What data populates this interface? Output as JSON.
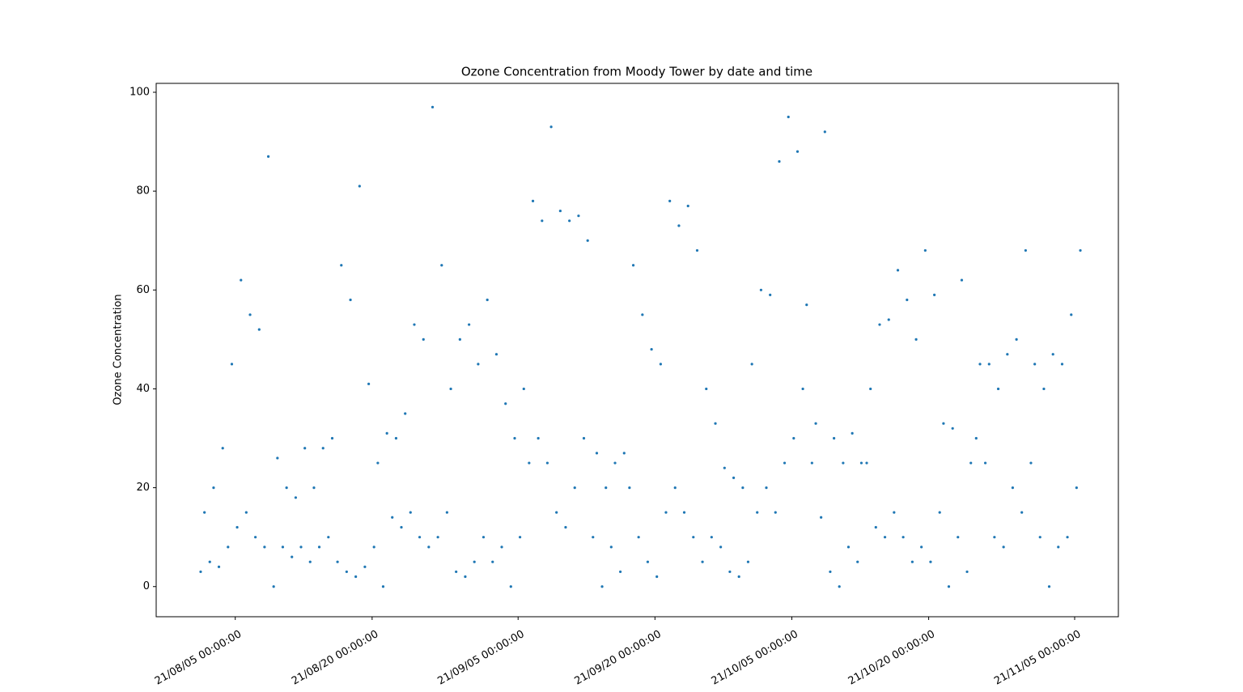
{
  "chart_data": {
    "type": "scatter",
    "title": "Ozone Concentration from Moody Tower by date and time",
    "y_label": "Ozone Concentration",
    "color": "#1f77b4",
    "xlim": [
      "21/07/27 08:00:00",
      "21/11/09 19:00:00"
    ],
    "ylim": [
      -6.1,
      101.8
    ],
    "xticks": [
      "21/08/05 00:00:00",
      "21/08/20 00:00:00",
      "21/09/05 00:00:00",
      "21/09/20 00:00:00",
      "21/10/05 00:00:00",
      "21/10/20 00:00:00",
      "21/11/05 00:00:00"
    ],
    "yticks": [
      0,
      20,
      40,
      60,
      80,
      100
    ],
    "x": [
      "21/08/01 05:00:00",
      "21/08/01 15:00:00",
      "21/08/02 05:00:00",
      "21/08/02 15:00:00",
      "21/08/03 05:00:00",
      "21/08/03 15:00:00",
      "21/08/04 05:00:00",
      "21/08/04 15:00:00",
      "21/08/05 05:00:00",
      "21/08/05 15:00:00",
      "21/08/06 05:00:00",
      "21/08/06 15:00:00",
      "21/08/07 05:00:00",
      "21/08/07 15:00:00",
      "21/08/08 05:00:00",
      "21/08/08 15:00:00",
      "21/08/09 05:00:00",
      "21/08/09 15:00:00",
      "21/08/10 05:00:00",
      "21/08/10 15:00:00",
      "21/08/11 05:00:00",
      "21/08/11 15:00:00",
      "21/08/12 05:00:00",
      "21/08/12 15:00:00",
      "21/08/13 05:00:00",
      "21/08/13 15:00:00",
      "21/08/14 05:00:00",
      "21/08/14 15:00:00",
      "21/08/15 05:00:00",
      "21/08/15 15:00:00",
      "21/08/16 05:00:00",
      "21/08/16 15:00:00",
      "21/08/17 05:00:00",
      "21/08/17 15:00:00",
      "21/08/18 05:00:00",
      "21/08/18 15:00:00",
      "21/08/19 05:00:00",
      "21/08/19 15:00:00",
      "21/08/20 05:00:00",
      "21/08/20 15:00:00",
      "21/08/21 05:00:00",
      "21/08/21 15:00:00",
      "21/08/22 05:00:00",
      "21/08/22 15:00:00",
      "21/08/23 05:00:00",
      "21/08/23 15:00:00",
      "21/08/24 05:00:00",
      "21/08/24 15:00:00",
      "21/08/25 05:00:00",
      "21/08/25 15:00:00",
      "21/08/26 05:00:00",
      "21/08/26 15:00:00",
      "21/08/27 05:00:00",
      "21/08/27 15:00:00",
      "21/08/28 05:00:00",
      "21/08/28 15:00:00",
      "21/08/29 05:00:00",
      "21/08/29 15:00:00",
      "21/08/30 05:00:00",
      "21/08/30 15:00:00",
      "21/08/31 05:00:00",
      "21/08/31 15:00:00",
      "21/09/01 05:00:00",
      "21/09/01 15:00:00",
      "21/09/02 05:00:00",
      "21/09/02 15:00:00",
      "21/09/03 05:00:00",
      "21/09/03 15:00:00",
      "21/09/04 05:00:00",
      "21/09/04 15:00:00",
      "21/09/05 05:00:00",
      "21/09/05 15:00:00",
      "21/09/06 05:00:00",
      "21/09/06 15:00:00",
      "21/09/07 05:00:00",
      "21/09/07 15:00:00",
      "21/09/08 05:00:00",
      "21/09/08 15:00:00",
      "21/09/09 05:00:00",
      "21/09/09 15:00:00",
      "21/09/10 05:00:00",
      "21/09/10 15:00:00",
      "21/09/11 05:00:00",
      "21/09/11 15:00:00",
      "21/09/12 05:00:00",
      "21/09/12 15:00:00",
      "21/09/13 05:00:00",
      "21/09/13 15:00:00",
      "21/09/14 05:00:00",
      "21/09/14 15:00:00",
      "21/09/15 05:00:00",
      "21/09/15 15:00:00",
      "21/09/16 05:00:00",
      "21/09/16 15:00:00",
      "21/09/17 05:00:00",
      "21/09/17 15:00:00",
      "21/09/18 05:00:00",
      "21/09/18 15:00:00",
      "21/09/19 05:00:00",
      "21/09/19 15:00:00",
      "21/09/20 05:00:00",
      "21/09/20 15:00:00",
      "21/09/21 05:00:00",
      "21/09/21 15:00:00",
      "21/09/22 05:00:00",
      "21/09/22 15:00:00",
      "21/09/23 05:00:00",
      "21/09/23 15:00:00",
      "21/09/24 05:00:00",
      "21/09/24 15:00:00",
      "21/09/25 05:00:00",
      "21/09/25 15:00:00",
      "21/09/26 05:00:00",
      "21/09/26 15:00:00",
      "21/09/27 05:00:00",
      "21/09/27 15:00:00",
      "21/09/28 05:00:00",
      "21/09/28 15:00:00",
      "21/09/29 05:00:00",
      "21/09/29 15:00:00",
      "21/09/30 05:00:00",
      "21/09/30 15:00:00",
      "21/10/01 05:00:00",
      "21/10/01 15:00:00",
      "21/10/02 05:00:00",
      "21/10/02 15:00:00",
      "21/10/03 05:00:00",
      "21/10/03 15:00:00",
      "21/10/04 05:00:00",
      "21/10/04 15:00:00",
      "21/10/05 05:00:00",
      "21/10/05 15:00:00",
      "21/10/06 05:00:00",
      "21/10/06 15:00:00",
      "21/10/07 05:00:00",
      "21/10/07 15:00:00",
      "21/10/08 05:00:00",
      "21/10/08 15:00:00",
      "21/10/09 05:00:00",
      "21/10/09 15:00:00",
      "21/10/10 05:00:00",
      "21/10/10 15:00:00",
      "21/10/11 05:00:00",
      "21/10/11 15:00:00",
      "21/10/12 05:00:00",
      "21/10/12 15:00:00",
      "21/10/13 05:00:00",
      "21/10/13 15:00:00",
      "21/10/14 05:00:00",
      "21/10/14 15:00:00",
      "21/10/15 05:00:00",
      "21/10/15 15:00:00",
      "21/10/16 05:00:00",
      "21/10/16 15:00:00",
      "21/10/17 05:00:00",
      "21/10/17 15:00:00",
      "21/10/18 05:00:00",
      "21/10/18 15:00:00",
      "21/10/19 05:00:00",
      "21/10/19 15:00:00",
      "21/10/20 05:00:00",
      "21/10/20 15:00:00",
      "21/10/21 05:00:00",
      "21/10/21 15:00:00",
      "21/10/22 05:00:00",
      "21/10/22 15:00:00",
      "21/10/23 05:00:00",
      "21/10/23 15:00:00",
      "21/10/24 05:00:00",
      "21/10/24 15:00:00",
      "21/10/25 05:00:00",
      "21/10/25 15:00:00",
      "21/10/26 05:00:00",
      "21/10/26 15:00:00",
      "21/10/27 05:00:00",
      "21/10/27 15:00:00",
      "21/10/28 05:00:00",
      "21/10/28 15:00:00",
      "21/10/29 05:00:00",
      "21/10/29 15:00:00",
      "21/10/30 05:00:00",
      "21/10/30 15:00:00",
      "21/10/31 05:00:00",
      "21/10/31 15:00:00",
      "21/11/01 05:00:00",
      "21/11/01 15:00:00",
      "21/11/02 05:00:00",
      "21/11/02 15:00:00",
      "21/11/03 05:00:00",
      "21/11/03 15:00:00",
      "21/11/04 05:00:00",
      "21/11/04 15:00:00",
      "21/11/05 05:00:00",
      "21/11/05 15:00:00"
    ],
    "values": [
      3,
      15,
      5,
      20,
      4,
      28,
      8,
      45,
      12,
      62,
      15,
      55,
      10,
      52,
      8,
      87,
      0,
      26,
      8,
      20,
      6,
      18,
      8,
      28,
      5,
      20,
      8,
      28,
      10,
      30,
      5,
      65,
      3,
      58,
      2,
      81,
      4,
      41,
      8,
      25,
      0,
      31,
      14,
      30,
      12,
      35,
      15,
      53,
      10,
      50,
      8,
      97,
      10,
      65,
      15,
      40,
      3,
      50,
      2,
      53,
      5,
      45,
      10,
      58,
      5,
      47,
      8,
      37,
      0,
      30,
      10,
      40,
      25,
      78,
      30,
      74,
      25,
      93,
      15,
      76,
      12,
      74,
      20,
      75,
      30,
      70,
      10,
      27,
      0,
      20,
      8,
      25,
      3,
      27,
      20,
      65,
      10,
      55,
      5,
      48,
      2,
      45,
      15,
      78,
      20,
      73,
      15,
      77,
      10,
      68,
      5,
      40,
      10,
      33,
      8,
      24,
      3,
      22,
      2,
      20,
      5,
      45,
      15,
      60,
      20,
      59,
      15,
      86,
      25,
      95,
      30,
      88,
      40,
      57,
      25,
      33,
      14,
      92,
      3,
      30,
      0,
      25,
      8,
      31,
      5,
      25,
      25,
      40,
      12,
      53,
      10,
      54,
      15,
      64,
      10,
      58,
      5,
      50,
      8,
      68,
      5,
      59,
      15,
      33,
      0,
      32,
      10,
      62,
      3,
      25,
      30,
      45,
      25,
      45,
      10,
      40,
      8,
      47,
      20,
      50,
      15,
      68,
      25,
      45,
      10,
      40,
      0,
      47,
      8,
      45,
      10,
      55,
      20,
      68
    ]
  }
}
